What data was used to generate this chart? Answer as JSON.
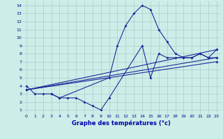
{
  "xlabel": "Graphe des températures (°c)",
  "background_color": "#cceee8",
  "grid_color": "#aacccc",
  "line_color": "#1a2a99",
  "xlim": [
    -0.5,
    23.5
  ],
  "ylim": [
    0.5,
    14.5
  ],
  "xticks": [
    0,
    1,
    2,
    3,
    4,
    5,
    6,
    7,
    8,
    9,
    10,
    11,
    12,
    13,
    14,
    15,
    16,
    17,
    18,
    19,
    20,
    21,
    22,
    23
  ],
  "yticks": [
    1,
    2,
    3,
    4,
    5,
    6,
    7,
    8,
    9,
    10,
    11,
    12,
    13,
    14
  ],
  "series": [
    {
      "x": [
        0,
        1,
        2,
        3,
        4,
        10,
        11,
        12,
        13,
        14,
        15,
        16,
        17,
        18,
        19,
        20,
        21,
        22,
        23
      ],
      "y": [
        4,
        3,
        3,
        3,
        2.5,
        5,
        9,
        11.5,
        13,
        14,
        13.5,
        11,
        9.5,
        8,
        7.5,
        7.5,
        8,
        7.5,
        8.5
      ]
    },
    {
      "x": [
        3,
        4,
        5,
        6,
        7,
        8,
        9,
        10,
        14,
        15,
        16,
        17,
        18,
        19,
        20,
        21,
        22,
        23
      ],
      "y": [
        3,
        2.5,
        2.5,
        2.5,
        2,
        1.5,
        1,
        2.5,
        9,
        5,
        8,
        7.5,
        7.5,
        7.5,
        7.5,
        8,
        7.5,
        7.5
      ]
    },
    {
      "x": [
        0,
        23
      ],
      "y": [
        3.5,
        7.5
      ]
    },
    {
      "x": [
        0,
        23
      ],
      "y": [
        3.5,
        8.5
      ]
    },
    {
      "x": [
        0,
        23
      ],
      "y": [
        3.5,
        7.0
      ]
    }
  ]
}
